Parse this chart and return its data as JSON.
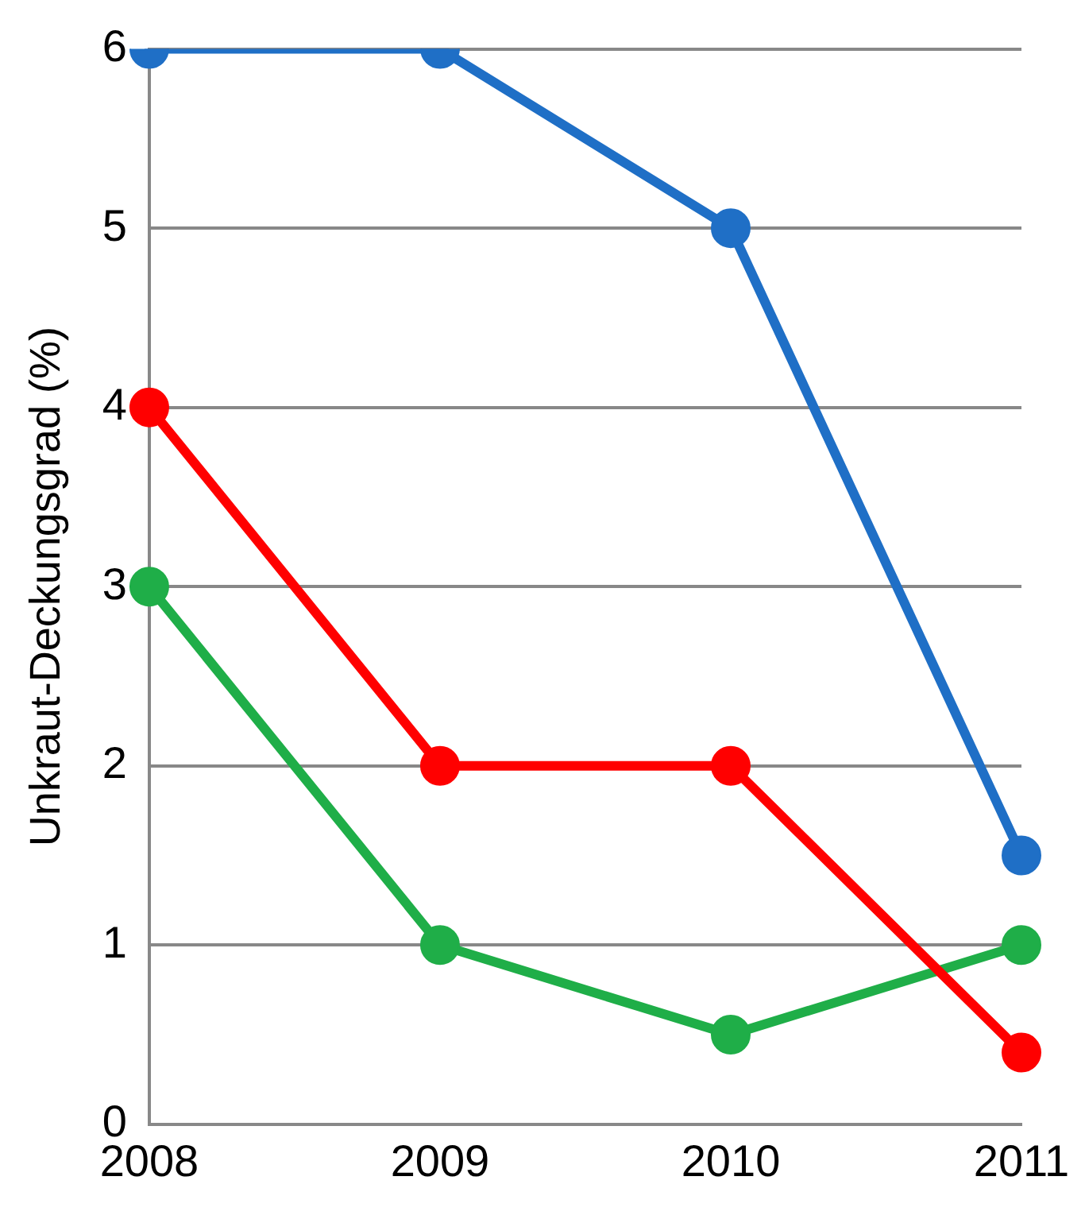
{
  "chart_data": {
    "type": "line",
    "ylabel": "Unkraut-Deckungsgrad (%)",
    "categories": [
      "2008",
      "2009",
      "2010",
      "2011"
    ],
    "series": [
      {
        "color": "#1f6fc6",
        "values": [
          6,
          6,
          5,
          1.5
        ]
      },
      {
        "color": "#ff0000",
        "values": [
          4,
          2,
          2,
          0.4
        ]
      },
      {
        "color": "#1fae48",
        "values": [
          3,
          1,
          0.5,
          1
        ]
      }
    ],
    "ylim": [
      0,
      6
    ],
    "yticks": [
      0,
      1,
      2,
      3,
      4,
      5,
      6
    ],
    "grid": "y",
    "legend": false,
    "marker": "circle",
    "line_style": "solid"
  }
}
